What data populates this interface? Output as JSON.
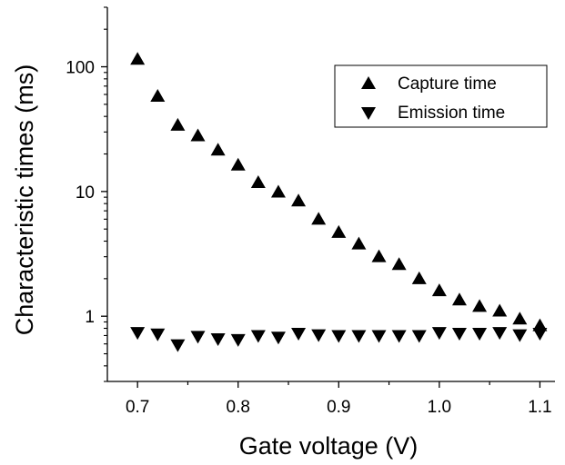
{
  "chart_data": {
    "type": "scatter",
    "xlabel": "Gate voltage (V)",
    "ylabel": "Characteristic times (ms)",
    "y_scale": "log",
    "xlim": [
      0.67,
      1.115
    ],
    "ylim": [
      0.3,
      300
    ],
    "x_ticks": [
      0.7,
      0.8,
      0.9,
      1.0,
      1.1
    ],
    "x_tick_labels": [
      "0.7",
      "0.8",
      "0.9",
      "1.0",
      "1.1"
    ],
    "y_ticks": [
      1,
      10,
      100
    ],
    "y_tick_labels": [
      "1",
      "10",
      "100"
    ],
    "grid": false,
    "legend_position": "top-right",
    "series": [
      {
        "name": "Capture time",
        "marker": "triangle-up",
        "color": "#000000",
        "x": [
          0.7,
          0.72,
          0.74,
          0.76,
          0.78,
          0.8,
          0.82,
          0.84,
          0.86,
          0.88,
          0.9,
          0.92,
          0.94,
          0.96,
          0.98,
          1.0,
          1.02,
          1.04,
          1.06,
          1.08,
          1.1
        ],
        "y": [
          115,
          58,
          34,
          28,
          21.5,
          16.3,
          11.8,
          9.9,
          8.4,
          6.0,
          4.7,
          3.8,
          3.0,
          2.6,
          2.0,
          1.6,
          1.35,
          1.2,
          1.1,
          0.95,
          0.84
        ]
      },
      {
        "name": "Emission time",
        "marker": "triangle-down",
        "color": "#000000",
        "x": [
          0.7,
          0.72,
          0.74,
          0.76,
          0.78,
          0.8,
          0.82,
          0.84,
          0.86,
          0.88,
          0.9,
          0.92,
          0.94,
          0.96,
          0.98,
          1.0,
          1.02,
          1.04,
          1.06,
          1.08,
          1.1
        ],
        "y": [
          0.74,
          0.72,
          0.59,
          0.69,
          0.66,
          0.65,
          0.7,
          0.68,
          0.73,
          0.71,
          0.7,
          0.7,
          0.7,
          0.7,
          0.7,
          0.74,
          0.73,
          0.73,
          0.74,
          0.71,
          0.73
        ]
      }
    ]
  }
}
